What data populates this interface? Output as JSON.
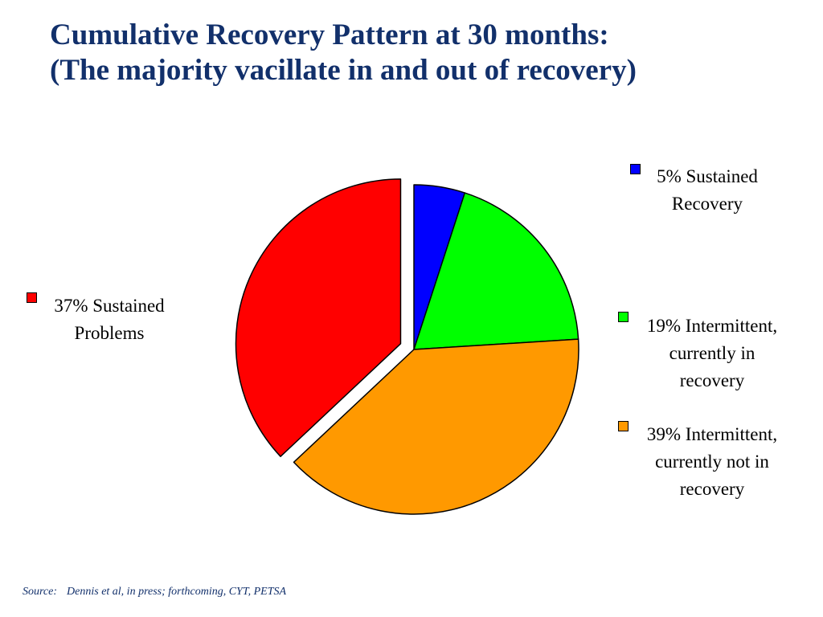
{
  "title": {
    "line1": "Cumulative Recovery Pattern at 30 months:",
    "line2": "(The majority vacillate in and out of recovery)"
  },
  "chart_data": {
    "type": "pie",
    "start_angle_deg": 0,
    "direction": "clockwise",
    "slices": [
      {
        "key": "sustained-recovery",
        "value": 5,
        "color": "#0000ff",
        "exploded": false,
        "legend_lines": [
          "5% Sustained",
          "Recovery"
        ]
      },
      {
        "key": "intermittent-in-recovery",
        "value": 19,
        "color": "#00ff00",
        "exploded": false,
        "legend_lines": [
          "19% Intermittent,",
          "currently in",
          "recovery"
        ]
      },
      {
        "key": "intermittent-not-in-recovery",
        "value": 39,
        "color": "#ff9900",
        "exploded": false,
        "legend_lines": [
          "39% Intermittent,",
          "currently not in",
          "recovery"
        ]
      },
      {
        "key": "sustained-problems",
        "value": 37,
        "color": "#ff0000",
        "exploded": true,
        "legend_lines": [
          "37% Sustained",
          "Problems"
        ]
      }
    ]
  },
  "source": {
    "label": "Source:",
    "text": "Dennis et al, in press; forthcoming, CYT, PETSA"
  }
}
